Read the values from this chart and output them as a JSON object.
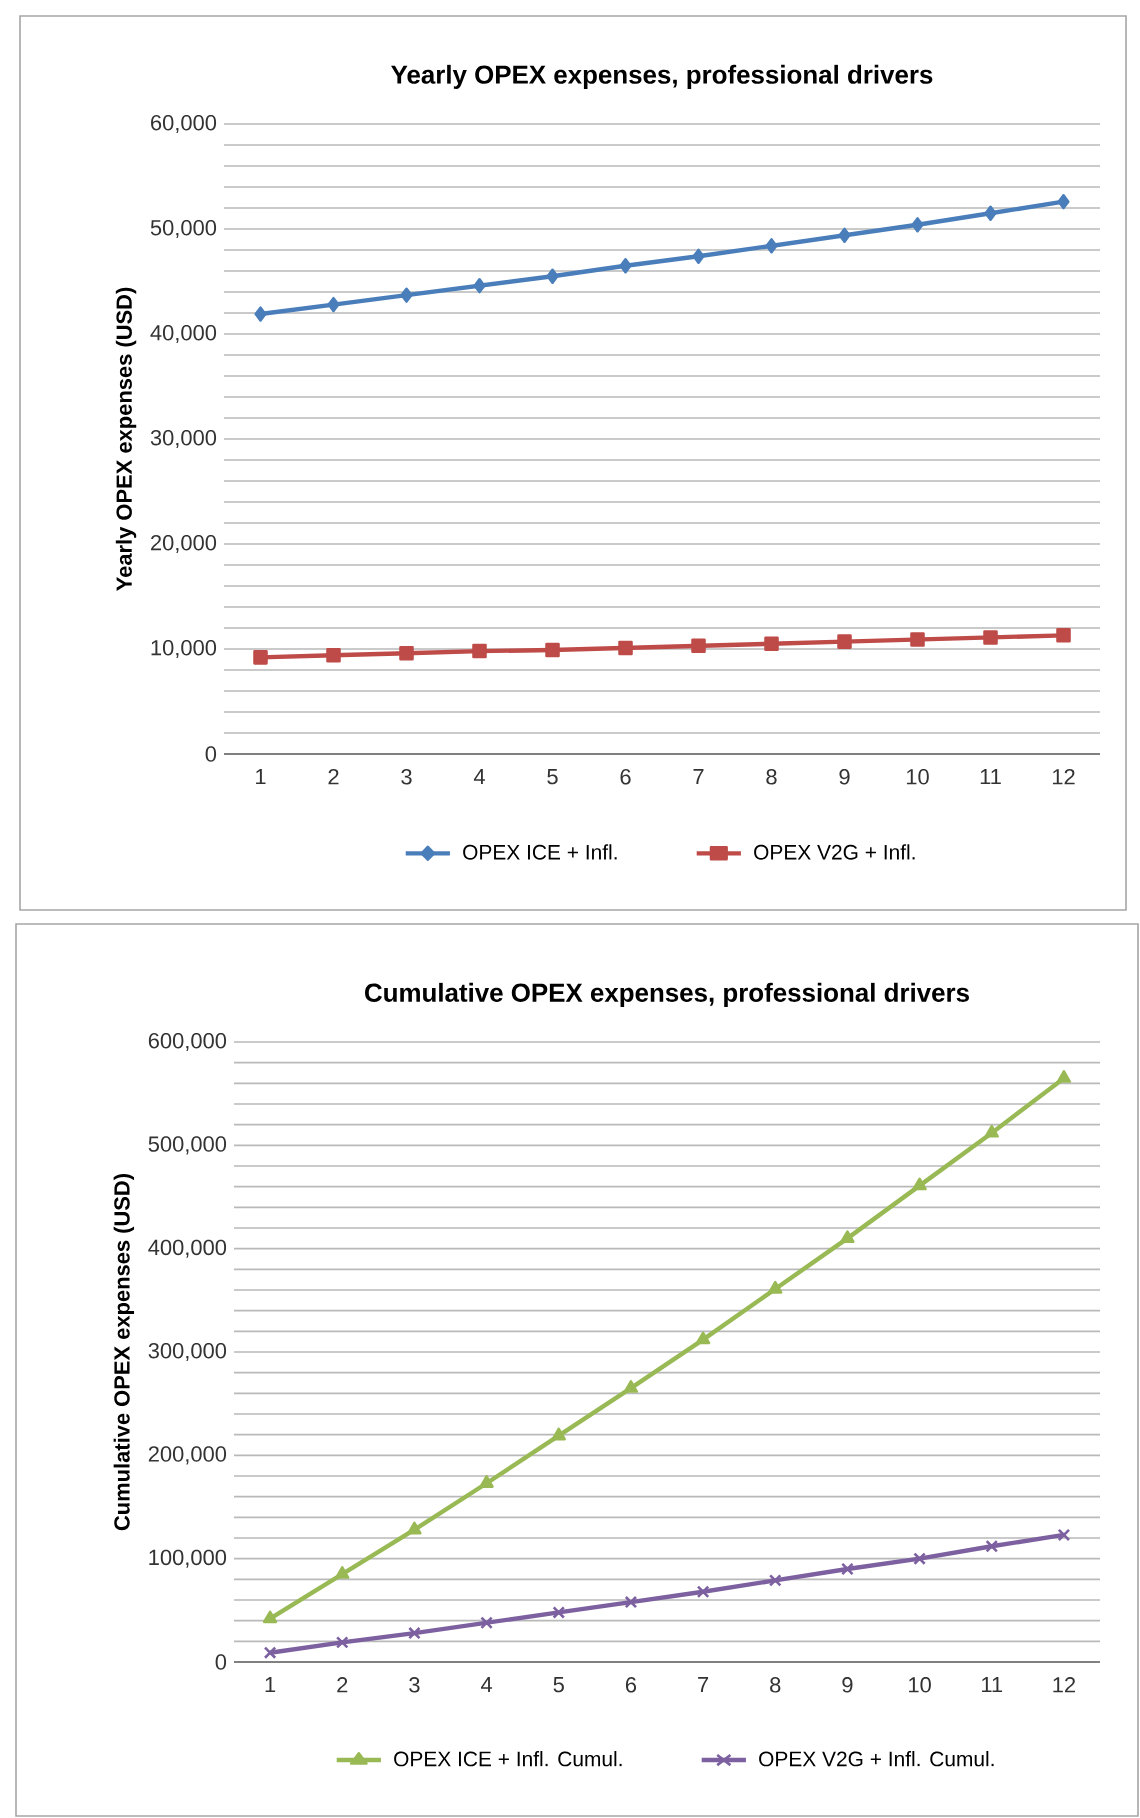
{
  "chart_data": [
    {
      "type": "line",
      "title": "Yearly OPEX expenses, professional drivers",
      "ylabel": "Yearly OPEX expenses (USD)",
      "categories": [
        "1",
        "2",
        "3",
        "4",
        "5",
        "6",
        "7",
        "8",
        "9",
        "10",
        "11",
        "12"
      ],
      "series": [
        {
          "name": "OPEX ICE + Infl.",
          "color": "#4a7ebb",
          "marker": "diamond",
          "values": [
            41900,
            42800,
            43700,
            44600,
            45500,
            46500,
            47400,
            48400,
            49400,
            50400,
            51500,
            52600
          ]
        },
        {
          "name": "OPEX V2G + Infl.",
          "color": "#be4b48",
          "marker": "square",
          "values": [
            9200,
            9400,
            9600,
            9800,
            9900,
            10100,
            10300,
            10500,
            10700,
            10900,
            11100,
            11300
          ]
        }
      ],
      "ylim": [
        0,
        60000
      ],
      "yticks": [
        {
          "value": 0,
          "label": "0"
        },
        {
          "value": 10000,
          "label": "10,000"
        },
        {
          "value": 20000,
          "label": "20,000"
        },
        {
          "value": 30000,
          "label": "30,000"
        },
        {
          "value": 40000,
          "label": "40,000"
        },
        {
          "value": 50000,
          "label": "50,000"
        },
        {
          "value": 60000,
          "label": "60,000"
        }
      ],
      "grid": "y",
      "legend": "bottom"
    },
    {
      "type": "line",
      "title": "Cumulative OPEX expenses, professional drivers",
      "ylabel": "Cumulative OPEX expenses (USD)",
      "categories": [
        "1",
        "2",
        "3",
        "4",
        "5",
        "6",
        "7",
        "8",
        "9",
        "10",
        "11",
        "12"
      ],
      "series": [
        {
          "name": "OPEX ICE + Infl. Cumul.",
          "color": "#98b954",
          "marker": "triangle",
          "values": [
            42000,
            85000,
            128000,
            173000,
            219000,
            265000,
            312000,
            361000,
            410000,
            461000,
            512000,
            565000
          ]
        },
        {
          "name": "OPEX V2G + Infl. Cumul.",
          "color": "#7d60a0",
          "marker": "cross",
          "values": [
            9000,
            19000,
            28000,
            38000,
            48000,
            58000,
            68000,
            79000,
            90000,
            100000,
            112000,
            123000
          ]
        }
      ],
      "ylim": [
        0,
        600000
      ],
      "yticks": [
        {
          "value": 0,
          "label": "0"
        },
        {
          "value": 100000,
          "label": "100,000"
        },
        {
          "value": 200000,
          "label": "200,000"
        },
        {
          "value": 300000,
          "label": "300,000"
        },
        {
          "value": 400000,
          "label": "400,000"
        },
        {
          "value": 500000,
          "label": "500,000"
        },
        {
          "value": 600000,
          "label": "600,000"
        }
      ],
      "grid": "y",
      "legend": "bottom"
    }
  ]
}
